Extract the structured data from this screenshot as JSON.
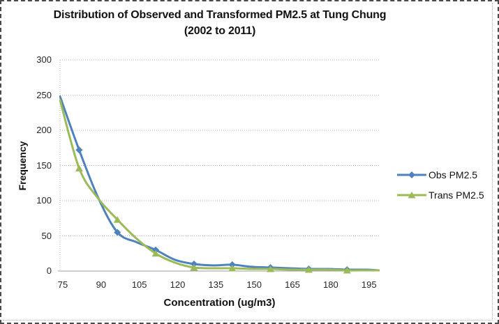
{
  "figure": {
    "kind": "embedded-excel-line-chart"
  },
  "chart_data": {
    "type": "line",
    "title": "Distribution of Observed and Transformed PM2.5 at Tung Chung",
    "subtitle": "(2002 to 2011)",
    "xlabel": "Concentration (ug/m3)",
    "ylabel": "Frequency",
    "xlim": [
      75,
      200
    ],
    "ylim": [
      0,
      300
    ],
    "x_ticks": [
      75,
      90,
      105,
      120,
      135,
      150,
      165,
      180,
      195
    ],
    "y_ticks": [
      0,
      50,
      100,
      150,
      200,
      250,
      300
    ],
    "grid": "horizontal-dotted",
    "legend_position": "right",
    "x": [
      75,
      82.5,
      90,
      97.5,
      105,
      112.5,
      120,
      127.5,
      135,
      142.5,
      150,
      157.5,
      165,
      172.5,
      180,
      187.5,
      195,
      200
    ],
    "series": [
      {
        "name": "Obs PM2.5",
        "color": "#4F81BD",
        "marker": "diamond",
        "marker_x": [
          82.5,
          97.5,
          112.5,
          127.5,
          142.5,
          157.5,
          172.5,
          187.5
        ],
        "values": [
          248,
          172,
          104,
          55,
          41,
          30,
          16,
          10,
          8,
          9,
          6,
          5,
          4,
          3,
          3,
          2,
          2,
          1
        ]
      },
      {
        "name": "Trans PM2.5",
        "color": "#9BBB59",
        "marker": "triangle",
        "marker_x": [
          82.5,
          97.5,
          112.5,
          127.5,
          142.5,
          157.5,
          172.5,
          187.5
        ],
        "values": [
          243,
          146,
          103,
          73,
          46,
          25,
          12,
          5,
          4,
          4,
          3,
          3,
          2,
          2,
          2,
          1,
          1,
          1
        ]
      }
    ],
    "colors": {
      "gridline": "#b3b3b3",
      "axis_line": "#9b9b9b",
      "tick_text": "#262626"
    }
  }
}
